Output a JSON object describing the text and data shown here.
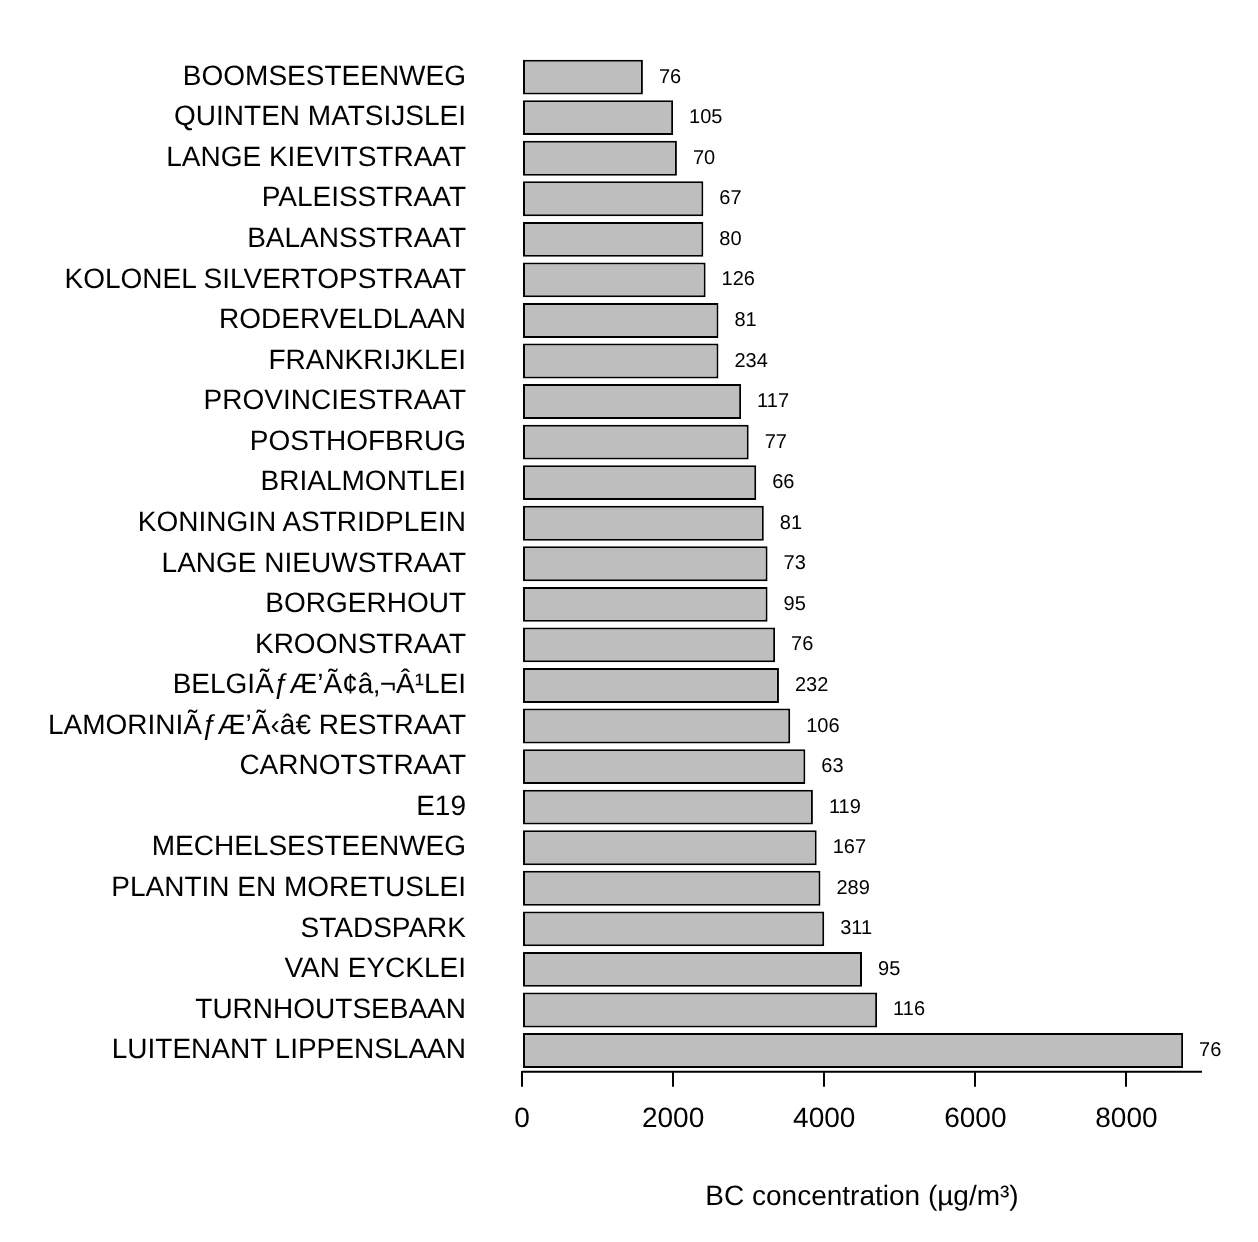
{
  "chart_data": {
    "type": "bar",
    "orientation": "horizontal",
    "xlabel": "BC concentration (µg/m³)",
    "categories": [
      "BOOMSESTEENWEG",
      "QUINTEN MATSIJSLEI",
      "LANGE KIEVITSTRAAT",
      "PALEISSTRAAT",
      "BALANSSTRAAT",
      "KOLONEL SILVERTOPSTRAAT",
      "RODERVELDLAAN",
      "FRANKRIJKLEI",
      "PROVINCIESTRAAT",
      "POSTHOFBRUG",
      "BRIALMONTLEI",
      "KONINGIN ASTRIDPLEIN",
      "LANGE NIEUWSTRAAT",
      "BORGERHOUT",
      "KROONSTRAAT",
      "BELGIÃƒÆ’Ã¢â‚¬Â¹LEI",
      "LAMORINIÃƒÆ’Ã‹â€ RESTRAAT",
      "CARNOTSTRAAT",
      "E19",
      "MECHELSESTEENWEG",
      "PLANTIN EN MORETUSLEI",
      "STADSPARK",
      "VAN EYCKLEI",
      "TURNHOUTSEBAAN",
      "LUITENANT LIPPENSLAAN"
    ],
    "values": [
      1600,
      2000,
      2050,
      2400,
      2400,
      2430,
      2600,
      2600,
      2900,
      3000,
      3100,
      3200,
      3250,
      3250,
      3350,
      3400,
      3550,
      3750,
      3850,
      3900,
      3950,
      4000,
      4500,
      4700,
      8750
    ],
    "annotations": [
      {
        "text": "76",
        "x": 1600,
        "y": "BOOMSESTEENWEG"
      },
      {
        "text": "105",
        "x": 2000,
        "y": "QUINTEN MATSIJSLEI"
      },
      {
        "text": "70",
        "x": 2050,
        "y": "LANGE KIEVITSTRAAT"
      },
      {
        "text": "67",
        "x": 2400,
        "y": "PALEISSTRAAT"
      },
      {
        "text": "80",
        "x": 2400,
        "y": "BALANSSTRAAT"
      },
      {
        "text": "126",
        "x": 2430,
        "y": "KOLONEL SILVERTOPSTRAAT"
      },
      {
        "text": "81",
        "x": 2600,
        "y": "RODERVELDLAAN"
      },
      {
        "text": "234",
        "x": 2600,
        "y": "FRANKRIJKLEI"
      },
      {
        "text": "117",
        "x": 2900,
        "y": "PROVINCIESTRAAT"
      },
      {
        "text": "77",
        "x": 3000,
        "y": "POSTHOFBRUG"
      },
      {
        "text": "66",
        "x": 3100,
        "y": "BRIALMONTLEI"
      },
      {
        "text": "81",
        "x": 3200,
        "y": "KONINGIN ASTRIDPLEIN"
      },
      {
        "text": "73",
        "x": 3250,
        "y": "LANGE NIEUWSTRAAT"
      },
      {
        "text": "95",
        "x": 3250,
        "y": "BORGERHOUT"
      },
      {
        "text": "76",
        "x": 3350,
        "y": "KROONSTRAAT"
      },
      {
        "text": "232",
        "x": 3400,
        "y": "BELGIÃƒÆ’Ã¢â‚¬Â¹LEI"
      },
      {
        "text": "106",
        "x": 3550,
        "y": "LAMORINIÃƒÆ’Ã‹â€ RESTRAAT"
      },
      {
        "text": "63",
        "x": 3750,
        "y": "CARNOTSTRAAT"
      },
      {
        "text": "119",
        "x": 3850,
        "y": "E19"
      },
      {
        "text": "167",
        "x": 3900,
        "y": "MECHELSESTEENWEG"
      },
      {
        "text": "289",
        "x": 3950,
        "y": "PLANTIN EN MORETUSLEI"
      },
      {
        "text": "311",
        "x": 4000,
        "y": "STADSPARK"
      },
      {
        "text": "95",
        "x": 4500,
        "y": "VAN EYCKLEI"
      },
      {
        "text": "116",
        "x": 4700,
        "y": "TURNHOUTSEBAAN"
      },
      {
        "text": "76",
        "x": 8750,
        "y": "LUITENANT LIPPENSLAAN"
      }
    ],
    "color": "#bebebe",
    "xlim": [
      0,
      9000
    ],
    "xticks": [
      0,
      2000,
      4000,
      6000,
      8000
    ],
    "grid": false,
    "legend": false
  }
}
